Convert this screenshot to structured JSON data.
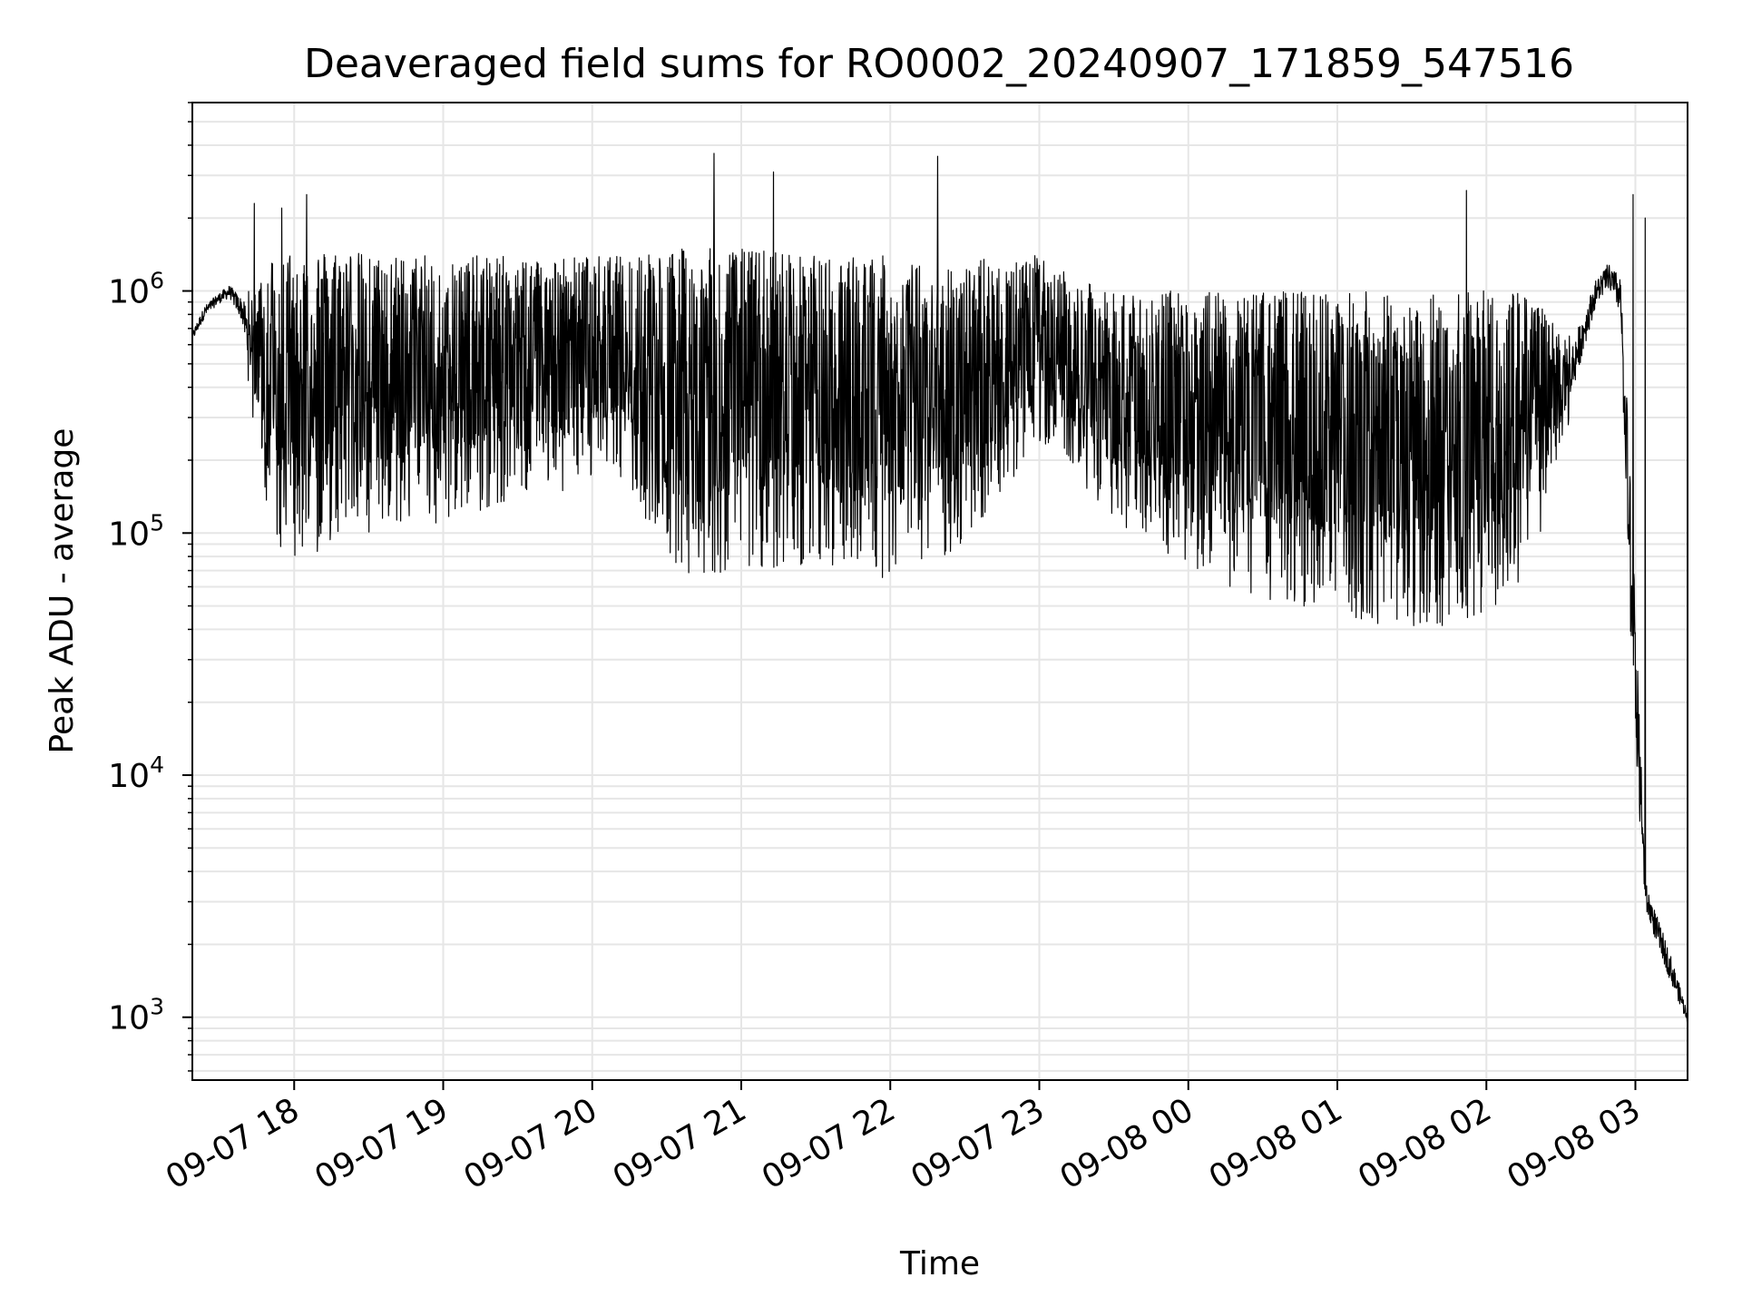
{
  "chart_data": {
    "type": "line",
    "title": "Deaveraged field sums for RO0002_20240907_171859_547516",
    "xlabel": "Time",
    "ylabel": "Peak ADU - average",
    "yscale": "log",
    "ylim": [
      550,
      6000000
    ],
    "xlim": [
      "09-07 17:19",
      "09-08 03:21"
    ],
    "grid": true,
    "line_color": "#000000",
    "x_ticks": [
      {
        "value": "09-07 18:00",
        "label": "09-07 18"
      },
      {
        "value": "09-07 19:00",
        "label": "09-07 19"
      },
      {
        "value": "09-07 20:00",
        "label": "09-07 20"
      },
      {
        "value": "09-07 21:00",
        "label": "09-07 21"
      },
      {
        "value": "09-07 22:00",
        "label": "09-07 22"
      },
      {
        "value": "09-07 23:00",
        "label": "09-07 23"
      },
      {
        "value": "09-08 00:00",
        "label": "09-08 00"
      },
      {
        "value": "09-08 01:00",
        "label": "09-08 01"
      },
      {
        "value": "09-08 02:00",
        "label": "09-08 02"
      },
      {
        "value": "09-08 03:00",
        "label": "09-08 03"
      }
    ],
    "y_ticks": [
      {
        "value": 1000,
        "base": "10",
        "exp": "3"
      },
      {
        "value": 10000,
        "base": "10",
        "exp": "4"
      },
      {
        "value": 100000,
        "base": "10",
        "exp": "5"
      },
      {
        "value": 1000000,
        "base": "10",
        "exp": "6"
      }
    ],
    "series": [
      {
        "x": [
          "09-07 17:19",
          "09-07 17:24",
          "09-07 17:29",
          "09-07 17:34",
          "09-07 17:39",
          "09-07 17:44",
          "09-07 17:49",
          "09-07 17:54",
          "09-07 17:59",
          "09-07 18:04",
          "09-07 18:09",
          "09-07 18:14",
          "09-07 18:19",
          "09-07 18:24",
          "09-07 18:29",
          "09-07 18:34",
          "09-07 18:39",
          "09-07 18:44",
          "09-07 18:49",
          "09-07 18:54",
          "09-07 18:59",
          "09-07 19:04",
          "09-07 19:09",
          "09-07 19:14",
          "09-07 19:19",
          "09-07 19:24",
          "09-07 19:29",
          "09-07 19:34",
          "09-07 19:39",
          "09-07 19:44",
          "09-07 19:49",
          "09-07 19:54",
          "09-07 19:59",
          "09-07 20:04",
          "09-07 20:09",
          "09-07 20:14",
          "09-07 20:19",
          "09-07 20:24",
          "09-07 20:29",
          "09-07 20:34",
          "09-07 20:39",
          "09-07 20:44",
          "09-07 20:49",
          "09-07 20:54",
          "09-07 20:59",
          "09-07 21:04",
          "09-07 21:09",
          "09-07 21:14",
          "09-07 21:19",
          "09-07 21:24",
          "09-07 21:29",
          "09-07 21:34",
          "09-07 21:39",
          "09-07 21:44",
          "09-07 21:49",
          "09-07 21:54",
          "09-07 21:59",
          "09-07 22:04",
          "09-07 22:09",
          "09-07 22:14",
          "09-07 22:19",
          "09-07 22:24",
          "09-07 22:29",
          "09-07 22:34",
          "09-07 22:39",
          "09-07 22:44",
          "09-07 22:49",
          "09-07 22:54",
          "09-07 22:59",
          "09-07 23:04",
          "09-07 23:09",
          "09-07 23:14",
          "09-07 23:19",
          "09-07 23:24",
          "09-07 23:29",
          "09-07 23:34",
          "09-07 23:39",
          "09-07 23:44",
          "09-07 23:49",
          "09-07 23:54",
          "09-07 23:59",
          "09-08 00:04",
          "09-08 00:09",
          "09-08 00:14",
          "09-08 00:19",
          "09-08 00:24",
          "09-08 00:29",
          "09-08 00:34",
          "09-08 00:39",
          "09-08 00:44",
          "09-08 00:49",
          "09-08 00:54",
          "09-08 00:59",
          "09-08 01:04",
          "09-08 01:09",
          "09-08 01:14",
          "09-08 01:19",
          "09-08 01:24",
          "09-08 01:29",
          "09-08 01:34",
          "09-08 01:39",
          "09-08 01:44",
          "09-08 01:49",
          "09-08 01:54",
          "09-08 01:59",
          "09-08 02:04",
          "09-08 02:09",
          "09-08 02:14",
          "09-08 02:19",
          "09-08 02:24",
          "09-08 02:29",
          "09-08 02:34",
          "09-08 02:39",
          "09-08 02:44",
          "09-08 02:49",
          "09-08 02:54",
          "09-08 02:59",
          "09-08 03:04",
          "09-08 03:09",
          "09-08 03:14",
          "09-08 03:21"
        ],
        "lower": [
          600000,
          750000,
          850000,
          900000,
          700000,
          260000,
          130000,
          90000,
          70000,
          75000,
          80000,
          90000,
          100000,
          100000,
          95000,
          90000,
          100000,
          110000,
          120000,
          110000,
          110000,
          110000,
          120000,
          120000,
          130000,
          130000,
          140000,
          150000,
          150000,
          140000,
          150000,
          160000,
          170000,
          170000,
          160000,
          150000,
          120000,
          90000,
          70000,
          65000,
          60000,
          60000,
          65000,
          70000,
          75000,
          70000,
          70000,
          70000,
          70000,
          70000,
          70000,
          70000,
          70000,
          65000,
          65000,
          65000,
          65000,
          65000,
          65000,
          70000,
          75000,
          80000,
          90000,
          100000,
          110000,
          130000,
          160000,
          200000,
          240000,
          230000,
          210000,
          180000,
          150000,
          130000,
          110000,
          100000,
          95000,
          90000,
          85000,
          80000,
          75000,
          70000,
          65000,
          60000,
          58000,
          55000,
          55000,
          52000,
          50000,
          50000,
          48000,
          46000,
          45000,
          44000,
          43000,
          42000,
          42000,
          42000,
          41000,
          41000,
          40000,
          40000,
          40000,
          42000,
          45000,
          50000,
          55000,
          60000,
          80000,
          120000,
          200000,
          300000,
          500000,
          800000,
          950000,
          700000,
          20000,
          2500,
          1800,
          1300,
          900
        ],
        "upper": [
          700000,
          900000,
          1000000,
          1100000,
          1000000,
          1000000,
          1400000,
          1500000,
          1500000,
          1500000,
          1500000,
          1500000,
          1500000,
          1500000,
          1400000,
          1400000,
          1400000,
          1400000,
          1400000,
          1400000,
          1400000,
          1400000,
          1400000,
          1400000,
          1400000,
          1400000,
          1400000,
          1400000,
          1400000,
          1400000,
          1400000,
          1400000,
          1400000,
          1400000,
          1400000,
          1400000,
          1500000,
          1500000,
          1500000,
          1500000,
          1500000,
          1500000,
          1500000,
          1500000,
          1500000,
          1500000,
          1500000,
          1500000,
          1500000,
          1400000,
          1400000,
          1400000,
          1400000,
          1400000,
          1400000,
          1400000,
          1400000,
          1400000,
          1300000,
          1300000,
          1300000,
          1300000,
          1300000,
          1300000,
          1400000,
          1400000,
          1400000,
          1400000,
          1400000,
          1300000,
          1200000,
          1200000,
          1100000,
          1000000,
          1000000,
          1000000,
          1000000,
          1000000,
          1000000,
          1000000,
          1000000,
          1000000,
          1000000,
          1000000,
          1000000,
          1000000,
          1000000,
          1000000,
          1000000,
          1000000,
          1000000,
          1000000,
          1000000,
          1000000,
          1000000,
          1000000,
          1000000,
          1000000,
          1000000,
          1000000,
          1000000,
          1000000,
          1000000,
          1000000,
          1000000,
          1000000,
          1000000,
          1000000,
          1000000,
          800000,
          700000,
          700000,
          900000,
          1200000,
          1400000,
          1300000,
          100000,
          4000,
          2800,
          2000,
          1100
        ],
        "spikes": [
          {
            "x": "09-07 17:44",
            "value": 2300000
          },
          {
            "x": "09-07 17:55",
            "value": 2200000
          },
          {
            "x": "09-07 18:05",
            "value": 2500000
          },
          {
            "x": "09-07 20:49",
            "value": 3700000
          },
          {
            "x": "09-07 21:13",
            "value": 3100000
          },
          {
            "x": "09-07 22:19",
            "value": 3600000
          },
          {
            "x": "09-08 01:52",
            "value": 2600000
          },
          {
            "x": "09-08 02:59",
            "value": 2500000
          },
          {
            "x": "09-08 03:04",
            "value": 2000000
          }
        ]
      }
    ]
  }
}
